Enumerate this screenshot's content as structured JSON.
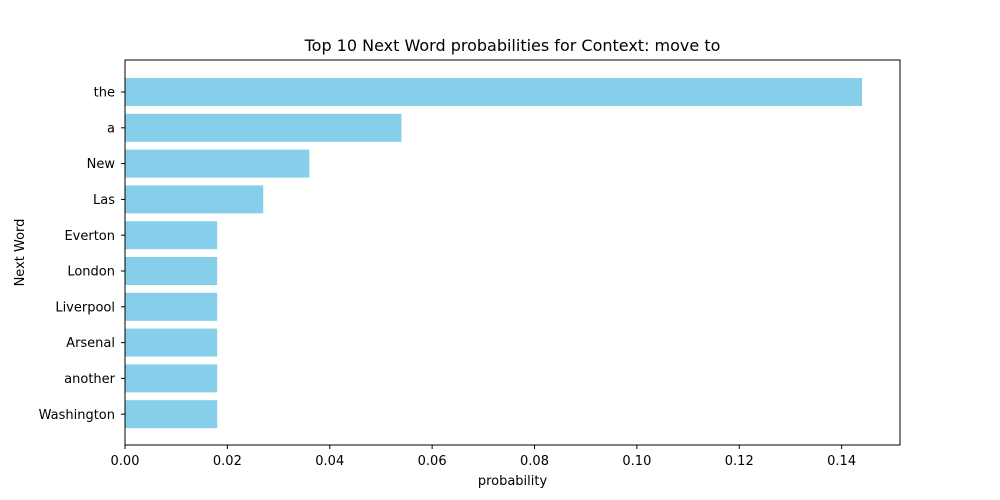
{
  "chart_data": {
    "type": "bar",
    "orientation": "horizontal",
    "title": "Top 10 Next Word probabilities for Context: move to",
    "xlabel": "probability",
    "ylabel": "Next Word",
    "categories": [
      "the",
      "a",
      "New",
      "Las",
      "Everton",
      "London",
      "Liverpool",
      "Arsenal",
      "another",
      "Washington"
    ],
    "values": [
      0.144,
      0.054,
      0.036,
      0.027,
      0.018,
      0.018,
      0.018,
      0.018,
      0.018,
      0.018
    ],
    "xlim": [
      0,
      0.1514
    ],
    "xticks": [
      0.0,
      0.02,
      0.04,
      0.06,
      0.08,
      0.1,
      0.12,
      0.14
    ],
    "xtick_labels": [
      "0.00",
      "0.02",
      "0.04",
      "0.06",
      "0.08",
      "0.10",
      "0.12",
      "0.14"
    ],
    "bar_color": "#87ceeb",
    "grid": false,
    "legend": "none"
  }
}
